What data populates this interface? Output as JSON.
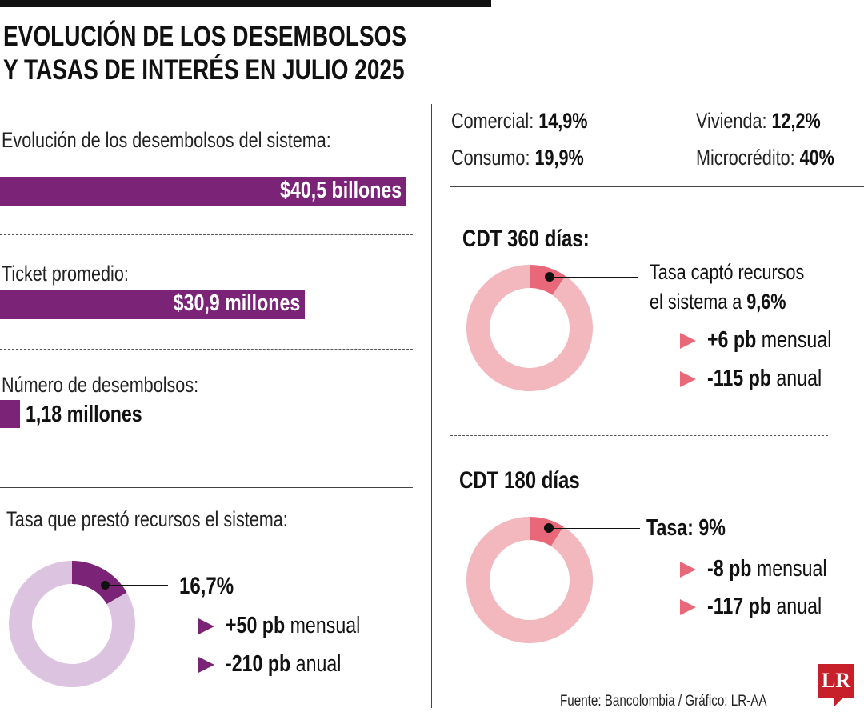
{
  "title": {
    "line1": "EVOLUCIÓN DE LOS DESEMBOLSOS",
    "line2": "Y TASAS DE INTERÉS EN JULIO 2025"
  },
  "colors": {
    "bar": "#7b2377",
    "lending_fill": "#7b2377",
    "lending_rest": "#dcc4e0",
    "cdt_fill": "#e8687a",
    "cdt_rest": "#f2b8be",
    "logo": "#c8202a"
  },
  "rates_by_type": [
    {
      "label": "Comercial:",
      "value": "14,9%"
    },
    {
      "label": "Consumo:",
      "value": "19,9%"
    },
    {
      "label": "Vivienda:",
      "value": "12,2%"
    },
    {
      "label": "Microcrédito:",
      "value": "40%"
    }
  ],
  "disbursements": {
    "total_label": "Evolución de los desembolsos del sistema:",
    "total_value": "$40,5 billones",
    "ticket_label": "Ticket promedio:",
    "ticket_value": "$30,9 millones",
    "count_label": "Número de desembolsos:",
    "count_value": "1,18 millones"
  },
  "lending": {
    "label": "Tasa que prestó recursos el sistema:",
    "value": "16,7%",
    "monthly_value": "+50 pb",
    "monthly_word": "mensual",
    "annual_value": "-210 pb",
    "annual_word": "anual"
  },
  "cdt360": {
    "title": "CDT 360 días:",
    "text1": "Tasa captó recursos",
    "text2": "el sistema a ",
    "value": "9,6%",
    "monthly_value": "+6 pb",
    "monthly_word": "mensual",
    "annual_value": "-115 pb",
    "annual_word": "anual"
  },
  "cdt180": {
    "title": "CDT 180 días",
    "text": "Tasa: ",
    "value": "9%",
    "monthly_value": "-8 pb",
    "monthly_word": "mensual",
    "annual_value": "-117 pb",
    "annual_word": "anual"
  },
  "footer": {
    "source": "Fuente: Bancolombia / Gráfico: LR-AA",
    "logo": "LR"
  },
  "chart_data": [
    {
      "type": "bar",
      "categories": [
        "Desembolsos del sistema",
        "Ticket promedio",
        "Número de desembolsos"
      ],
      "labels": [
        "$40,5 billones",
        "$30,9 millones",
        "1,18 millones"
      ]
    },
    {
      "type": "pie",
      "title": "Tasa que prestó recursos el sistema:",
      "values": [
        16.7,
        83.3
      ],
      "label": "16,7%"
    },
    {
      "type": "pie",
      "title": "CDT 360 días:",
      "values": [
        9.6,
        90.4
      ],
      "label": "9,6%"
    },
    {
      "type": "pie",
      "title": "CDT 180 días",
      "values": [
        9,
        91
      ],
      "label": "9%"
    }
  ]
}
